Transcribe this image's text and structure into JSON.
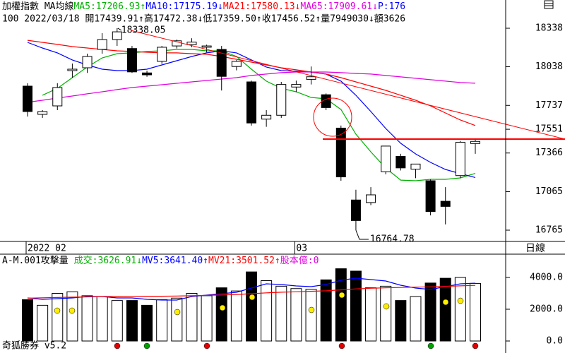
{
  "app": {
    "period": "日線",
    "brand": "奇狐勝券 v5.2"
  },
  "chart_data": [
    {
      "type": "candlestick",
      "header": [
        {
          "text": "加權指數 MA均線",
          "color": "#000000"
        },
        {
          "text": "MA5:17206.93↑",
          "color": "#00b000"
        },
        {
          "text": "MA10:17175.19↓",
          "color": "#0000ff"
        },
        {
          "text": "MA21:17580.13↓",
          "color": "#ff0000"
        },
        {
          "text": "MA65:17909.61↓",
          "color": "#e000e0"
        },
        {
          "text": "P:176",
          "color": "#0000ff"
        }
      ],
      "info": "100 2022/03/18 開17439.91↑高17472.38↓低17359.50↑收17456.52↑量7949030↓額3626",
      "categories": [
        "2022 02",
        null,
        null,
        null,
        null,
        null,
        null,
        null,
        null,
        null,
        null,
        null,
        null,
        null,
        null,
        null,
        null,
        null,
        "03",
        null,
        null,
        null,
        null,
        null,
        null,
        null,
        null,
        null,
        null,
        null,
        null
      ],
      "open": [
        17887,
        17667,
        17733,
        18008,
        18030,
        18173,
        18250,
        18180,
        17990,
        18080,
        18200,
        18210,
        18190,
        18173,
        18040,
        17920,
        17630,
        17660,
        17880,
        17940,
        17820,
        17560,
        17000,
        16980,
        17220,
        17340,
        17240,
        17150,
        16990,
        17190,
        17439.91
      ],
      "high": [
        17909,
        17700,
        17910,
        18063,
        18140,
        18300,
        18338.05,
        18200,
        18008,
        18200,
        18250,
        18260,
        18210,
        18200,
        18090,
        17930,
        17700,
        17920,
        17930,
        18040,
        17830,
        17580,
        17080,
        17100,
        17420,
        17360,
        17270,
        17160,
        17100,
        17460,
        17472.38
      ],
      "low": [
        17650,
        17640,
        17700,
        17953,
        17990,
        18140,
        18200,
        17990,
        17960,
        18060,
        18180,
        18190,
        18150,
        17853,
        18010,
        17580,
        17570,
        17640,
        17840,
        17900,
        17700,
        17150,
        16764.78,
        16960,
        17200,
        17230,
        17170,
        16880,
        16810,
        17170,
        17359.5
      ],
      "close": [
        17689,
        17689,
        17876,
        18019,
        18118,
        18250,
        18310,
        17998,
        17975,
        18190,
        18240,
        18230,
        18200,
        17963,
        18080,
        17600,
        17660,
        17900,
        17900,
        17960,
        17720,
        17180,
        16840,
        17040,
        17420,
        17250,
        17280,
        16910,
        16950,
        17450,
        17456.52
      ],
      "series": [
        {
          "color": "#00b000",
          "values": [
            null,
            17816,
            17870,
            17953,
            18036,
            18107,
            18140,
            18146,
            18157,
            18162,
            18173,
            18173,
            18162,
            18162,
            18118,
            18019,
            17926,
            17870,
            17843,
            17799,
            17788,
            17705,
            17513,
            17375,
            17249,
            17155,
            17150,
            17161,
            17161,
            17172,
            17206.93
          ]
        },
        {
          "color": "#0000ff",
          "values": [
            18228,
            18184,
            18146,
            18091,
            18052,
            18019,
            18008,
            18008,
            18019,
            18052,
            18085,
            18118,
            18146,
            18162,
            18146,
            18091,
            18036,
            18008,
            18003,
            17997,
            17981,
            17926,
            17816,
            17689,
            17557,
            17442,
            17359,
            17293,
            17238,
            17205,
            17175.19
          ]
        },
        {
          "color": "#ff0000",
          "values": [
            18244,
            18228,
            18212,
            18195,
            18184,
            18173,
            18162,
            18157,
            18151,
            18146,
            18146,
            18140,
            18135,
            18118,
            18096,
            18074,
            18052,
            18030,
            18014,
            17997,
            17981,
            17953,
            17920,
            17887,
            17854,
            17816,
            17777,
            17733,
            17678,
            17623,
            17580.13
          ]
        },
        {
          "color": "#e000e0",
          "values": [
            17761,
            17777,
            17794,
            17810,
            17827,
            17843,
            17860,
            17876,
            17887,
            17898,
            17909,
            17920,
            17931,
            17942,
            17953,
            17970,
            17981,
            17992,
            17997,
            17997,
            17997,
            17992,
            17986,
            17981,
            17970,
            17959,
            17948,
            17937,
            17926,
            17915,
            17909.61
          ]
        }
      ],
      "annotations": [
        18338.05,
        16764.78
      ],
      "ylim": [
        16688,
        18459
      ],
      "yticks": [
        18338,
        18038,
        17737,
        17551,
        17366,
        17065,
        16765
      ]
    },
    {
      "type": "bar",
      "header": [
        {
          "text": "A-M.001攻擊量 ",
          "color": "#000000"
        },
        {
          "text": "成交:3626.91↓",
          "color": "#00b000"
        },
        {
          "text": "MV5:3641.40↑",
          "color": "#0000ff"
        },
        {
          "text": "MV21:3501.52↑",
          "color": "#ff0000"
        },
        {
          "text": "股本億:0",
          "color": "#e000e0"
        }
      ],
      "values": [
        2600,
        2250,
        3000,
        3100,
        2850,
        2800,
        2550,
        2550,
        2250,
        2600,
        2700,
        3000,
        2850,
        3350,
        3150,
        4350,
        3800,
        3450,
        3300,
        3250,
        3850,
        4550,
        4400,
        3350,
        3450,
        2550,
        2800,
        3650,
        3950,
        4000,
        3626.91
      ],
      "series": [
        {
          "color": "#0000ff",
          "values": [
            2711,
            2622,
            2667,
            2711,
            2800,
            2800,
            2711,
            2711,
            2622,
            2578,
            2578,
            2800,
            2889,
            2978,
            3067,
            3333,
            3600,
            3556,
            3467,
            3422,
            3556,
            3822,
            3956,
            3867,
            3778,
            3511,
            3333,
            3244,
            3422,
            3600,
            3641.4
          ]
        },
        {
          "color": "#ff0000",
          "values": [
            2700,
            2720,
            2740,
            2760,
            2780,
            2800,
            2800,
            2810,
            2820,
            2820,
            2830,
            2850,
            2870,
            2900,
            2930,
            2980,
            3030,
            3070,
            3100,
            3130,
            3160,
            3220,
            3280,
            3320,
            3350,
            3370,
            3390,
            3410,
            3440,
            3470,
            3501.52
          ]
        }
      ],
      "ylim": [
        -533,
        4667
      ],
      "yticks": [
        {
          "value": 4000,
          "label": "4000.0"
        },
        {
          "value": 2000,
          "label": "2000.0"
        },
        {
          "value": 0,
          "label": "0.0"
        }
      ]
    }
  ]
}
